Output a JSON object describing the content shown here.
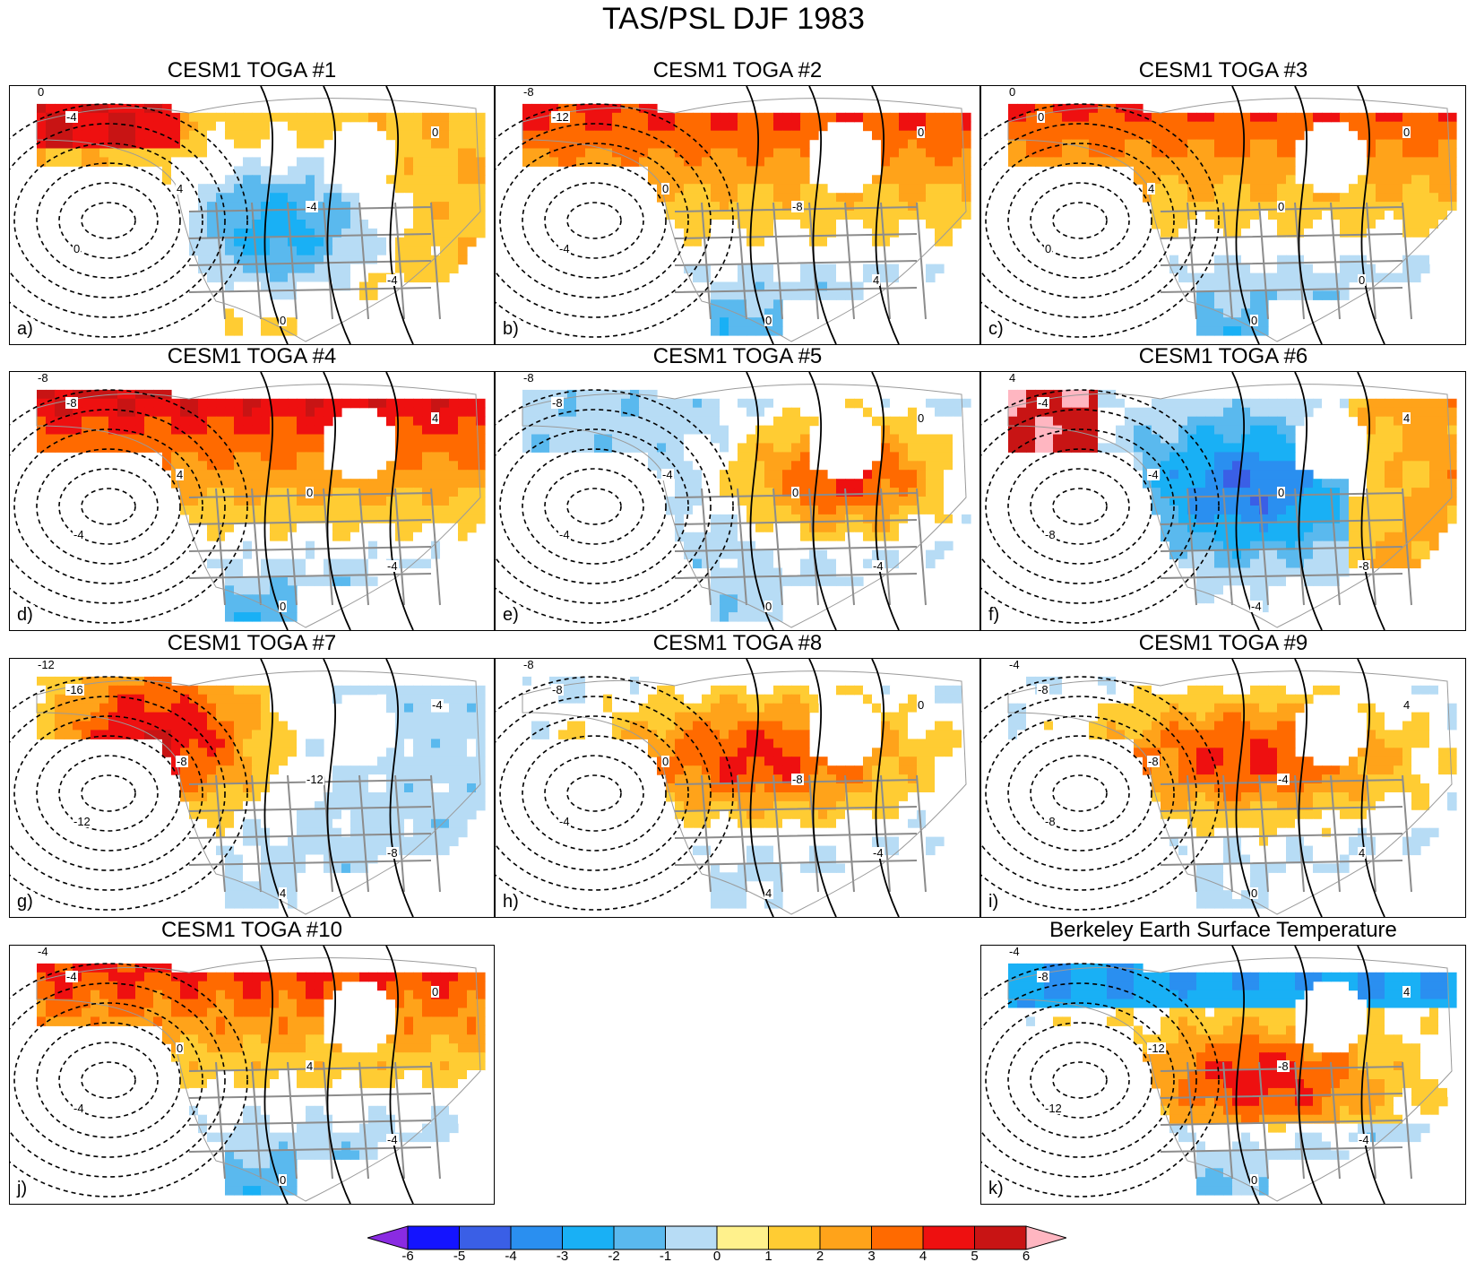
{
  "title": "TAS/PSL DJF 1983",
  "colorbar": {
    "ticks": [
      "-6",
      "-5",
      "-4",
      "-3",
      "-2",
      "-1",
      "0",
      "1",
      "2",
      "3",
      "4",
      "5",
      "6"
    ],
    "colors": [
      "#8a2be2",
      "#1414ff",
      "#3a5fe6",
      "#2a8ff0",
      "#19b0f5",
      "#5ab9ee",
      "#b7dcf5",
      "#fff18c",
      "#ffcc33",
      "#ffa31a",
      "#ff6a00",
      "#ee1010",
      "#c81414",
      "#ffb6c1"
    ]
  },
  "panels": [
    {
      "title": "CESM1 TOGA #1",
      "label": "a)",
      "pattern": "cold_center",
      "contours": [
        "0",
        "-4",
        "0",
        "4",
        "-4",
        "-4",
        "0",
        "0"
      ]
    },
    {
      "title": "CESM1 TOGA #2",
      "label": "b)",
      "pattern": "warm_north_cold_south",
      "contours": [
        "-8",
        "-12",
        "-4",
        "0",
        "-8",
        "4",
        "0",
        "0"
      ]
    },
    {
      "title": "CESM1 TOGA #3",
      "label": "c)",
      "pattern": "warm_north_cold_south",
      "contours": [
        "0",
        "0",
        "0",
        "4",
        "0",
        "0",
        "0",
        "0"
      ]
    },
    {
      "title": "CESM1 TOGA #4",
      "label": "d)",
      "pattern": "strong_warm_north",
      "contours": [
        "-8",
        "-8",
        "-4",
        "4",
        "0",
        "-4",
        "4",
        "0"
      ]
    },
    {
      "title": "CESM1 TOGA #5",
      "label": "e)",
      "pattern": "warm_east",
      "contours": [
        "-8",
        "-8",
        "-4",
        "-4",
        "0",
        "-4",
        "0",
        "0"
      ]
    },
    {
      "title": "CESM1 TOGA #6",
      "label": "f)",
      "pattern": "cold_center_west",
      "contours": [
        "4",
        "-4",
        "-8",
        "-4",
        "0",
        "-8",
        "4",
        "-4"
      ]
    },
    {
      "title": "CESM1 TOGA #7",
      "label": "g)",
      "pattern": "warm_west",
      "contours": [
        "-12",
        "-16",
        "-12",
        "-8",
        "-12",
        "-8",
        "-4",
        "4"
      ]
    },
    {
      "title": "CESM1 TOGA #8",
      "label": "h)",
      "pattern": "warm_north",
      "contours": [
        "-8",
        "-8",
        "-4",
        "0",
        "-8",
        "-4",
        "0",
        "4"
      ]
    },
    {
      "title": "CESM1 TOGA #9",
      "label": "i)",
      "pattern": "warm_north",
      "contours": [
        "-4",
        "-8",
        "-8",
        "-8",
        "-4",
        "4",
        "4",
        "0"
      ]
    },
    {
      "title": "CESM1 TOGA #10",
      "label": "j)",
      "pattern": "warm_north_cold_south",
      "contours": [
        "-4",
        "-4",
        "-4",
        "0",
        "4",
        "-4",
        "0",
        "0"
      ]
    },
    {
      "title": "Berkeley Earth Surface Temperature",
      "label": "k)",
      "pattern": "berkeley",
      "contours": [
        "-4",
        "-8",
        "-12",
        "-12",
        "-8",
        "-4",
        "4",
        "0"
      ]
    }
  ]
}
